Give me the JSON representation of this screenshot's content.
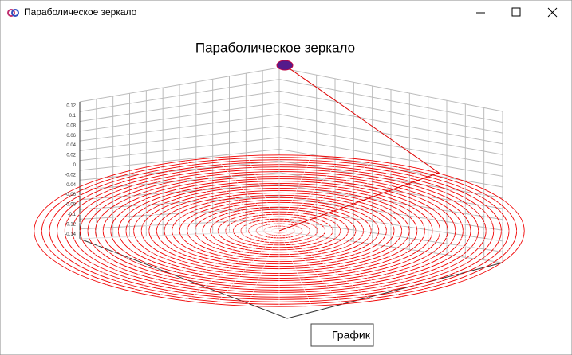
{
  "window": {
    "title": "Параболическое зеркало"
  },
  "chart": {
    "title": "Параболическое зеркало",
    "z_axis_ticks": [
      "0.12",
      "0.1",
      "0.08",
      "0.06",
      "0.04",
      "0.02",
      "0",
      "-0.02",
      "-0.04",
      "-0.06",
      "-0.08",
      "-0.1",
      "-0.12",
      "-0.14"
    ]
  },
  "legend": {
    "label": "График"
  }
}
